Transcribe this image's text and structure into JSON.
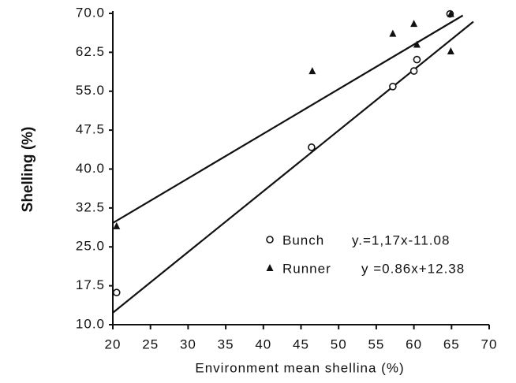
{
  "chart_data": {
    "type": "scatter",
    "xlabel": "Environment mean shellina (%)",
    "ylabel": "Shelling (%)",
    "xlim": [
      20,
      70
    ],
    "xticks": [
      20,
      25,
      30,
      35,
      40,
      45,
      50,
      55,
      60,
      65,
      70
    ],
    "ylim": [
      10,
      70
    ],
    "yticks": [
      {
        "value": 10,
        "label": "10.0"
      },
      {
        "value": 17.5,
        "label": "17.5"
      },
      {
        "value": 25,
        "label": "25.0"
      },
      {
        "value": 32.5,
        "label": "32.5"
      },
      {
        "value": 40,
        "label": "40.0"
      },
      {
        "value": 47.5,
        "label": "47.5"
      },
      {
        "value": 55,
        "label": "55.0"
      },
      {
        "value": 62.5,
        "label": "62.5"
      },
      {
        "value": 70,
        "label": "70.0"
      }
    ],
    "series": [
      {
        "name": "Bunch",
        "equation": "y.=1,17x-11.08",
        "marker": "circle",
        "color": "#111111",
        "x": [
          20.5,
          46.4,
          57.2,
          60,
          60.4,
          64.8
        ],
        "values": [
          16.2,
          44.2,
          55.9,
          58.9,
          61.1,
          69.9
        ],
        "fit_x": [
          20,
          67.9
        ],
        "fit_values": [
          12.3,
          68.4
        ]
      },
      {
        "name": "Runner",
        "equation": "y =0.86x+12.38",
        "marker": "triangle",
        "color": "#111111",
        "x": [
          20.5,
          46.5,
          57.2,
          60,
          60.4,
          64.9,
          64.9
        ],
        "values": [
          29,
          58.9,
          66.1,
          68,
          64,
          62.7,
          69.9
        ],
        "fit_x": [
          20,
          66.5
        ],
        "fit_values": [
          29.6,
          69.6
        ]
      }
    ]
  }
}
